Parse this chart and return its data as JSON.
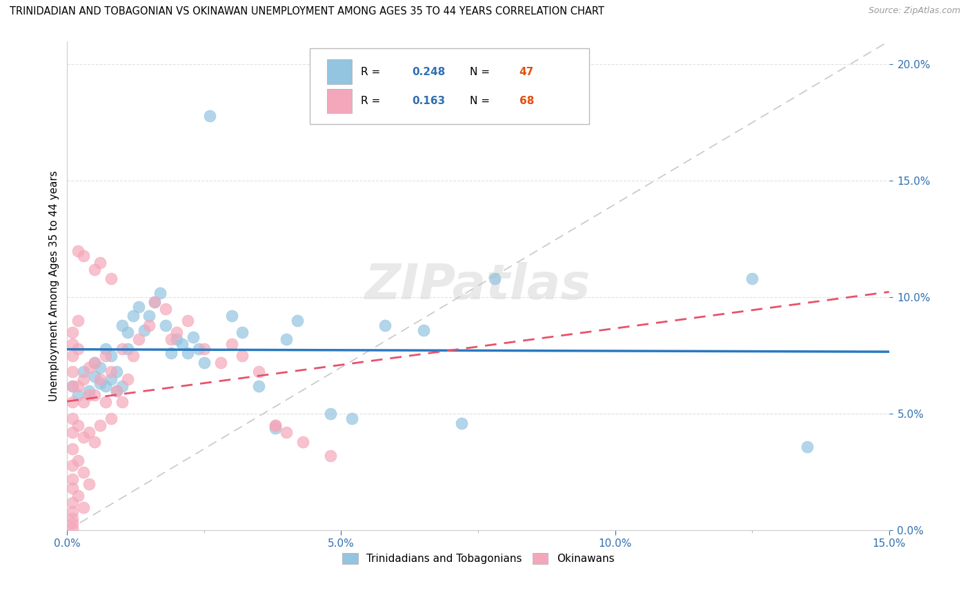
{
  "title": "TRINIDADIAN AND TOBAGONIAN VS OKINAWAN UNEMPLOYMENT AMONG AGES 35 TO 44 YEARS CORRELATION CHART",
  "source": "Source: ZipAtlas.com",
  "xlim": [
    0.0,
    0.15
  ],
  "ylim": [
    0.0,
    0.21
  ],
  "ylabel": "Unemployment Among Ages 35 to 44 years",
  "watermark": "ZIPatlas",
  "blue_color": "#93c4e0",
  "pink_color": "#f4a7ba",
  "blue_line_color": "#2979c0",
  "pink_line_color": "#e8526a",
  "legend_r1_val": "0.248",
  "legend_n1_val": "47",
  "legend_r2_val": "0.163",
  "legend_n2_val": "68",
  "tt_x": [
    0.001,
    0.002,
    0.003,
    0.004,
    0.005,
    0.005,
    0.006,
    0.006,
    0.007,
    0.007,
    0.008,
    0.008,
    0.009,
    0.009,
    0.01,
    0.01,
    0.011,
    0.011,
    0.012,
    0.013,
    0.014,
    0.015,
    0.016,
    0.017,
    0.018,
    0.019,
    0.02,
    0.021,
    0.022,
    0.023,
    0.024,
    0.025,
    0.026,
    0.03,
    0.032,
    0.035,
    0.038,
    0.04,
    0.042,
    0.048,
    0.052,
    0.058,
    0.065,
    0.072,
    0.078,
    0.125,
    0.135
  ],
  "tt_y": [
    0.062,
    0.058,
    0.068,
    0.06,
    0.066,
    0.072,
    0.063,
    0.07,
    0.062,
    0.078,
    0.065,
    0.075,
    0.068,
    0.06,
    0.088,
    0.062,
    0.085,
    0.078,
    0.092,
    0.096,
    0.086,
    0.092,
    0.098,
    0.102,
    0.088,
    0.076,
    0.082,
    0.08,
    0.076,
    0.083,
    0.078,
    0.072,
    0.178,
    0.092,
    0.085,
    0.062,
    0.044,
    0.082,
    0.09,
    0.05,
    0.048,
    0.088,
    0.086,
    0.046,
    0.108,
    0.108,
    0.036
  ],
  "ok_x": [
    0.001,
    0.001,
    0.001,
    0.001,
    0.001,
    0.001,
    0.001,
    0.001,
    0.001,
    0.001,
    0.001,
    0.001,
    0.001,
    0.001,
    0.001,
    0.001,
    0.001,
    0.002,
    0.002,
    0.002,
    0.002,
    0.002,
    0.002,
    0.003,
    0.003,
    0.003,
    0.003,
    0.003,
    0.004,
    0.004,
    0.004,
    0.004,
    0.005,
    0.005,
    0.005,
    0.006,
    0.006,
    0.007,
    0.007,
    0.008,
    0.008,
    0.009,
    0.01,
    0.01,
    0.011,
    0.012,
    0.013,
    0.015,
    0.016,
    0.018,
    0.019,
    0.02,
    0.022,
    0.025,
    0.028,
    0.03,
    0.032,
    0.035,
    0.038,
    0.04,
    0.043,
    0.048,
    0.002,
    0.003,
    0.005,
    0.006,
    0.008,
    0.038
  ],
  "ok_y": [
    0.068,
    0.062,
    0.055,
    0.048,
    0.042,
    0.035,
    0.028,
    0.022,
    0.018,
    0.012,
    0.008,
    0.005,
    0.003,
    0.001,
    0.075,
    0.08,
    0.085,
    0.09,
    0.078,
    0.062,
    0.045,
    0.03,
    0.015,
    0.065,
    0.055,
    0.04,
    0.025,
    0.01,
    0.07,
    0.058,
    0.042,
    0.02,
    0.072,
    0.058,
    0.038,
    0.065,
    0.045,
    0.075,
    0.055,
    0.068,
    0.048,
    0.06,
    0.078,
    0.055,
    0.065,
    0.075,
    0.082,
    0.088,
    0.098,
    0.095,
    0.082,
    0.085,
    0.09,
    0.078,
    0.072,
    0.08,
    0.075,
    0.068,
    0.045,
    0.042,
    0.038,
    0.032,
    0.12,
    0.118,
    0.112,
    0.115,
    0.108,
    0.045
  ]
}
